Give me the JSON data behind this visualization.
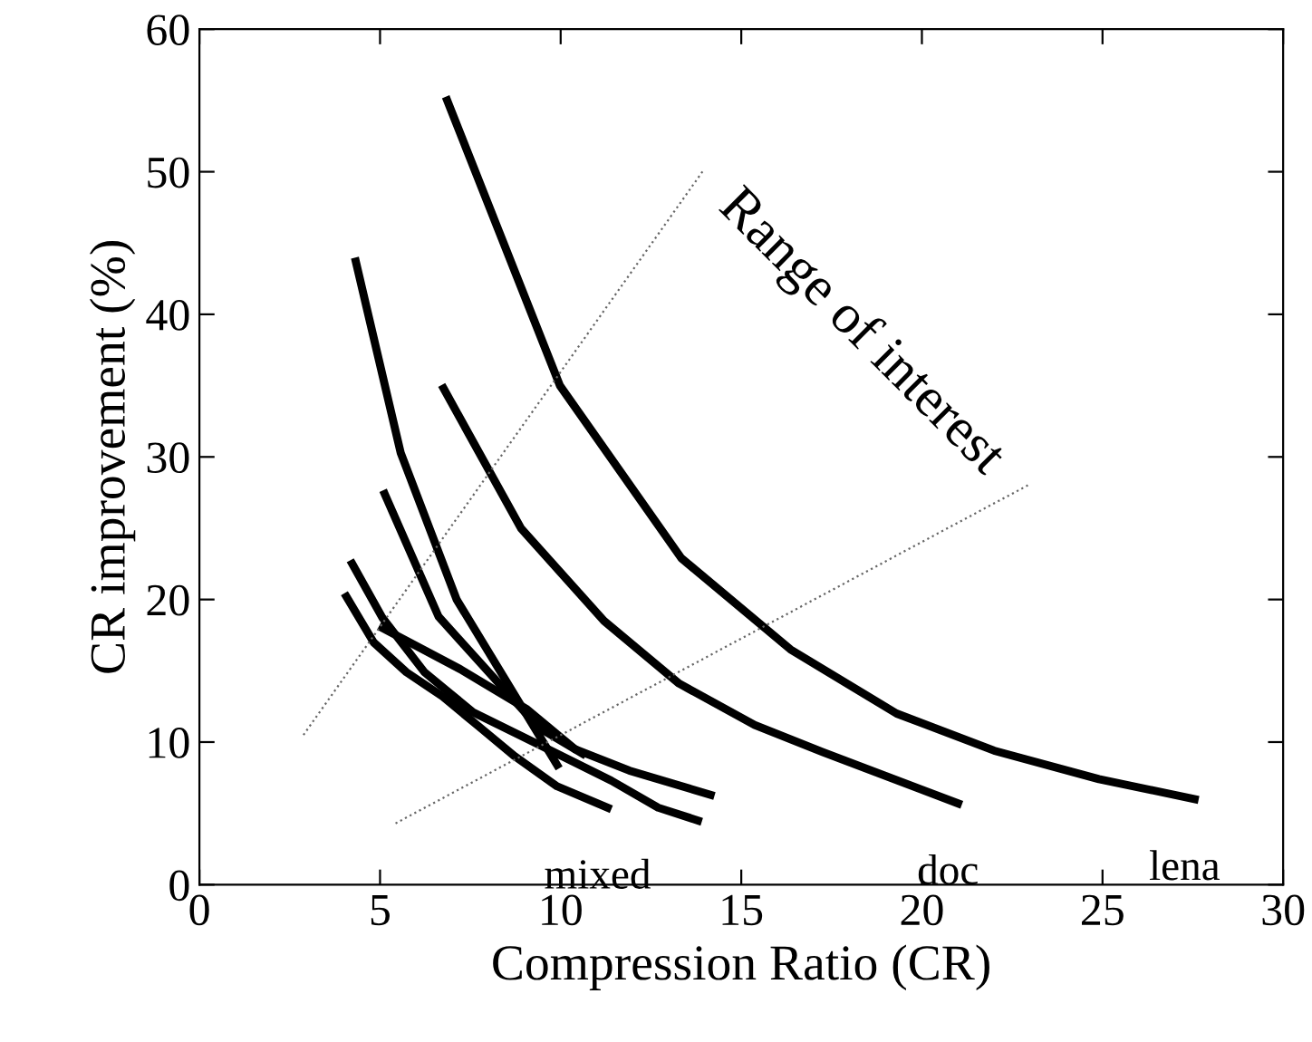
{
  "chart_data": {
    "type": "line",
    "xlabel": "Compression Ratio (CR)",
    "ylabel": "CR improvement (%)",
    "xlim": [
      0,
      30
    ],
    "xticks": [
      0,
      5,
      10,
      15,
      20,
      25,
      30
    ],
    "ylim": [
      0,
      60
    ],
    "yticks": [
      0,
      10,
      20,
      30,
      40,
      50,
      60
    ],
    "grid": false,
    "legend": false,
    "marker": "none",
    "series": [
      {
        "name": "lena",
        "color": "#000000",
        "line_style": "solid",
        "x": [
          6.86,
          9.98,
          13.34,
          16.36,
          19.3,
          22.0,
          24.9,
          27.55
        ],
        "values": [
          55.0,
          35.0,
          22.9,
          16.5,
          12.0,
          9.4,
          7.4,
          6.0
        ]
      },
      {
        "name": "doc",
        "color": "#000000",
        "line_style": "solid",
        "x": [
          6.76,
          8.9,
          11.2,
          13.28,
          15.37,
          17.26,
          21.0
        ],
        "values": [
          34.8,
          25.0,
          18.5,
          14.1,
          11.2,
          9.3,
          5.7
        ]
      },
      {
        "color": "#000000",
        "line_style": "solid",
        "x": [
          4.33,
          5.57,
          7.12,
          9.9
        ],
        "values": [
          43.7,
          30.3,
          20.0,
          8.4
        ]
      },
      {
        "color": "#000000",
        "line_style": "solid",
        "x": [
          5.13,
          6.62,
          9.4,
          10.6
        ],
        "values": [
          27.4,
          18.8,
          11.0,
          9.2
        ]
      },
      {
        "color": "#000000",
        "line_style": "solid",
        "x": [
          5.07,
          7.23,
          9.07,
          10.4,
          11.9,
          14.15
        ],
        "values": [
          18.0,
          15.1,
          12.3,
          9.5,
          8.0,
          6.3
        ]
      },
      {
        "color": "#000000",
        "line_style": "solid",
        "x": [
          4.23,
          5.07,
          6.23,
          7.57,
          9.57,
          11.4,
          12.7,
          13.8
        ],
        "values": [
          22.5,
          18.7,
          14.9,
          12.1,
          9.6,
          7.3,
          5.4,
          4.5
        ]
      },
      {
        "name": "mixed",
        "color": "#000000",
        "line_style": "solid",
        "x": [
          4.07,
          4.82,
          5.73,
          6.73,
          7.73,
          8.73,
          9.9,
          11.3
        ],
        "values": [
          20.2,
          17.0,
          14.9,
          13.2,
          11.1,
          9.0,
          6.9,
          5.4
        ]
      },
      {
        "color": "#666666",
        "line_style": "dotted",
        "x": [
          2.88,
          13.98
        ],
        "values": [
          10.5,
          50.2
        ]
      },
      {
        "color": "#666666",
        "line_style": "dotted",
        "x": [
          5.43,
          23.0
        ],
        "values": [
          4.3,
          28.1
        ]
      }
    ],
    "annotations": [
      "Range of interest"
    ]
  }
}
